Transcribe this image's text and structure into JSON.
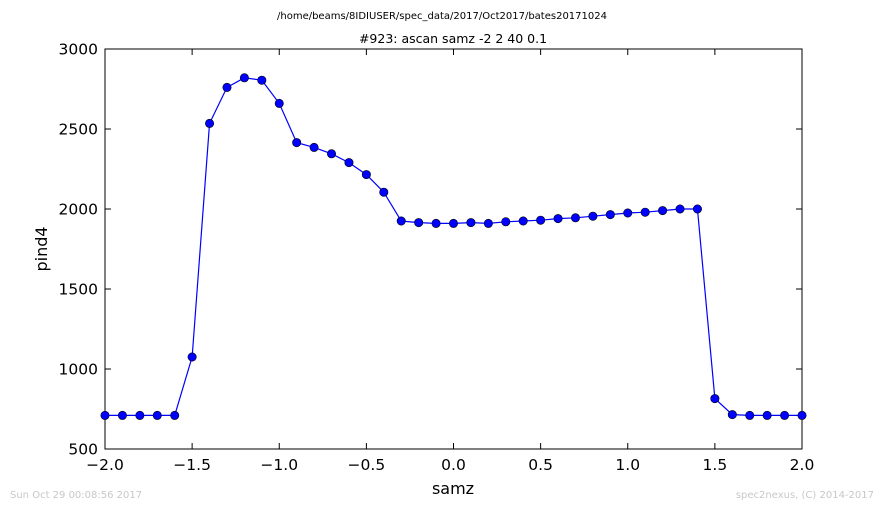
{
  "figure": {
    "suptitle": "/home/beams/8IDIUSER/spec_data/2017/Oct2017/bates20171024",
    "footer_left": "Sun Oct 29 00:08:56 2017",
    "footer_right": "spec2nexus, (C) 2014-2017"
  },
  "chart_data": {
    "type": "line",
    "title": "#923: ascan  samz -2 2  40 0.1",
    "xlabel": "samz",
    "ylabel": "pind4",
    "xlim": [
      -2.0,
      2.0
    ],
    "ylim": [
      500,
      3000
    ],
    "xticks": [
      -2.0,
      -1.5,
      -1.0,
      -0.5,
      0.0,
      0.5,
      1.0,
      1.5,
      2.0
    ],
    "xtick_labels": [
      "−2.0",
      "−1.5",
      "−1.0",
      "−0.5",
      "0.0",
      "0.5",
      "1.0",
      "1.5",
      "2.0"
    ],
    "yticks": [
      500,
      1000,
      1500,
      2000,
      2500,
      3000
    ],
    "ytick_labels": [
      "500",
      "1000",
      "1500",
      "2000",
      "2500",
      "3000"
    ],
    "grid": false,
    "marker": "circle",
    "color": "#0000ff",
    "series": [
      {
        "x": [
          -2.0,
          -1.9,
          -1.8,
          -1.7,
          -1.6,
          -1.5,
          -1.4,
          -1.3,
          -1.2,
          -1.1,
          -1.0,
          -0.9,
          -0.8,
          -0.7,
          -0.6,
          -0.5,
          -0.4,
          -0.3,
          -0.2,
          -0.1,
          0.0,
          0.1,
          0.2,
          0.3,
          0.4,
          0.5,
          0.6,
          0.7,
          0.8,
          0.9,
          1.0,
          1.1,
          1.2,
          1.3,
          1.4,
          1.5,
          1.6,
          1.7,
          1.8,
          1.9,
          2.0
        ],
        "y": [
          710,
          710,
          710,
          710,
          710,
          1075,
          2535,
          2760,
          2820,
          2805,
          2660,
          2415,
          2385,
          2345,
          2290,
          2215,
          2105,
          1925,
          1915,
          1910,
          1910,
          1915,
          1910,
          1920,
          1925,
          1930,
          1940,
          1945,
          1955,
          1965,
          1975,
          1980,
          1990,
          2000,
          2000,
          815,
          715,
          710,
          710,
          710,
          710
        ]
      }
    ]
  }
}
